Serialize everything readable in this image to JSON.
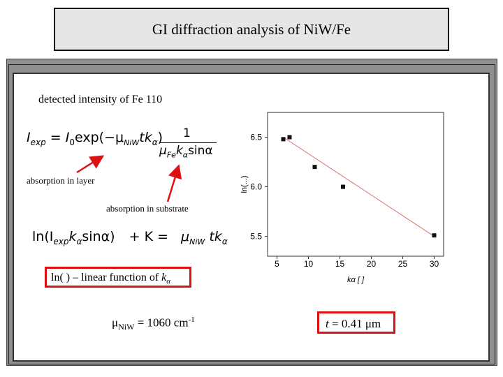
{
  "slide": {
    "title": "GI diffraction analysis of NiW/Fe",
    "heading": "detected intensity of Fe 110",
    "label_layer": "absorption in layer",
    "label_substrate": "absorption in substrate",
    "linear_text_prefix": "ln( ) – linear function of ",
    "linear_k": "k",
    "linear_alpha": "α",
    "mu_text": "μ",
    "mu_sub": "NiW",
    "mu_value": " = 1060 cm",
    "mu_exp": "-1",
    "t_var": "t",
    "t_value": " = 0.41 μm"
  },
  "formula1": {
    "lhs": "I",
    "lhs_sub": "exp",
    "eq": "=",
    "i0": "I",
    "i0_sub": "0",
    "exp": "exp(−μ",
    "exp_sub": "NiW",
    "tk": "tk",
    "tk_sub": "α",
    "close": ")",
    "num": "1",
    "den_mu": "μ",
    "den_mu_sub": "Fe",
    "den_k": "k",
    "den_k_sub": "α",
    "den_sin": "sinα"
  },
  "formula2": {
    "ln": "ln(I",
    "ln_sub": "exp",
    "k": "k",
    "k_sub": "α",
    "sin": "sinα)",
    "plusK": "+ K =",
    "mu": "μ",
    "mu_sub": "NiW",
    "tk": "tk",
    "tk_sub": "α"
  },
  "chart_data": {
    "type": "scatter",
    "title": "",
    "xlabel": "kα [ ]",
    "ylabel": "ln(...)",
    "xlim": [
      3.5,
      31.5
    ],
    "ylim": [
      5.3,
      6.75
    ],
    "xticks": [
      "5",
      "10",
      "15",
      "20",
      "25",
      "30"
    ],
    "yticks": [
      "5.5",
      "6.0",
      "6.5"
    ],
    "points": [
      {
        "x": 6.0,
        "y": 6.48
      },
      {
        "x": 7.0,
        "y": 6.5
      },
      {
        "x": 11.0,
        "y": 6.2
      },
      {
        "x": 15.5,
        "y": 6.0
      },
      {
        "x": 30.0,
        "y": 5.51
      }
    ],
    "fit": {
      "x": [
        6.0,
        30.0
      ],
      "y": [
        6.5,
        5.5
      ]
    },
    "colors": {
      "points": "#111111",
      "fit": "#e66a6a",
      "axis": "#333333"
    }
  }
}
